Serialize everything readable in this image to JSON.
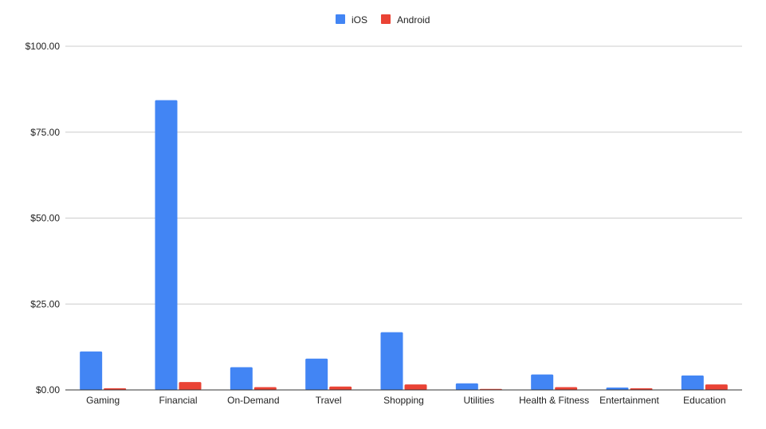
{
  "chart_data": {
    "type": "bar",
    "categories": [
      "Gaming",
      "Financial",
      "On-Demand",
      "Travel",
      "Shopping",
      "Utilities",
      "Health & Fitness",
      "Entertainment",
      "Education"
    ],
    "series": [
      {
        "name": "iOS",
        "color": "#4285f4",
        "values": [
          11.2,
          84.3,
          6.6,
          9.1,
          16.8,
          1.9,
          4.5,
          0.7,
          4.2
        ]
      },
      {
        "name": "Android",
        "color": "#ea4335",
        "values": [
          0.5,
          2.3,
          0.8,
          1.0,
          1.6,
          0.3,
          0.8,
          0.5,
          1.6
        ]
      }
    ],
    "y_ticks": [
      {
        "value": 0,
        "label": "$0.00"
      },
      {
        "value": 25,
        "label": "$25.00"
      },
      {
        "value": 50,
        "label": "$50.00"
      },
      {
        "value": 75,
        "label": "$75.00"
      },
      {
        "value": 100,
        "label": "$100.00"
      }
    ],
    "ylim": [
      0,
      100
    ],
    "grid": true,
    "legend_position": "top-center",
    "title": "",
    "xlabel": "",
    "ylabel": ""
  }
}
